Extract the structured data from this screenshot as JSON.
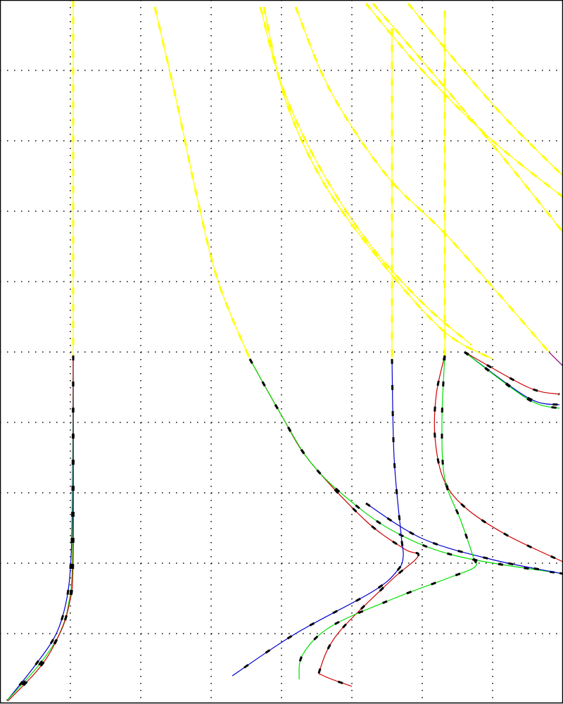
{
  "chart_data": {
    "type": "line",
    "title": "",
    "xlabel": "",
    "ylabel": "",
    "xlim": [
      0,
      8
    ],
    "ylim": [
      0,
      10
    ],
    "grid": true,
    "grid_style": "dotted",
    "legend": "none",
    "colors": {
      "yellow": "#ffff00",
      "red": "#cc0000",
      "green": "#00dd00",
      "blue": "#0000cc",
      "purple": "#800080",
      "dash": "#000000"
    },
    "series": [
      {
        "color": "yellow",
        "dashed": true,
        "points": [
          [
            1.04,
            10
          ],
          [
            1.04,
            4.95
          ]
        ]
      },
      {
        "color": "blue",
        "dashed": true,
        "points": [
          [
            1.04,
            4.95
          ],
          [
            1.03,
            3.0
          ],
          [
            1.01,
            2.1
          ],
          [
            0.95,
            1.5
          ],
          [
            0.8,
            1.0
          ],
          [
            0.5,
            0.55
          ],
          [
            0.1,
            0.05
          ]
        ]
      },
      {
        "color": "green",
        "dashed": true,
        "points": [
          [
            1.04,
            4.95
          ],
          [
            1.03,
            2.1
          ],
          [
            0.97,
            1.4
          ],
          [
            0.85,
            1.0
          ],
          [
            0.55,
            0.55
          ],
          [
            0.1,
            0.05
          ]
        ]
      },
      {
        "color": "red",
        "dashed": true,
        "points": [
          [
            1.04,
            4.95
          ],
          [
            1.04,
            2.1
          ],
          [
            0.98,
            1.4
          ],
          [
            0.8,
            0.9
          ],
          [
            0.55,
            0.5
          ],
          [
            0.12,
            0.05
          ]
        ]
      },
      {
        "color": "yellow",
        "dashed": true,
        "points": [
          [
            2.2,
            9.9
          ],
          [
            2.5,
            8.6
          ],
          [
            2.8,
            7.2
          ],
          [
            3.1,
            6.0
          ],
          [
            3.55,
            4.9
          ]
        ]
      },
      {
        "color": "red",
        "dashed": true,
        "points": [
          [
            3.55,
            4.9
          ],
          [
            4.0,
            4.1
          ],
          [
            4.4,
            3.45
          ],
          [
            5.2,
            2.6
          ],
          [
            5.75,
            2.2
          ],
          [
            5.94,
            2.1
          ],
          [
            5.55,
            1.75
          ],
          [
            4.8,
            1.0
          ],
          [
            4.55,
            0.5
          ],
          [
            4.6,
            0.4
          ],
          [
            5.0,
            0.25
          ]
        ]
      },
      {
        "color": "green",
        "dashed": true,
        "points": [
          [
            3.55,
            4.9
          ],
          [
            4.0,
            4.1
          ],
          [
            4.4,
            3.45
          ],
          [
            4.9,
            2.95
          ],
          [
            5.6,
            2.45
          ],
          [
            6.5,
            2.1
          ],
          [
            8.0,
            1.85
          ]
        ]
      },
      {
        "color": "yellow",
        "dashed": true,
        "points": [
          [
            5.57,
            9.6
          ],
          [
            5.57,
            4.9
          ]
        ]
      },
      {
        "color": "blue",
        "dashed": true,
        "points": [
          [
            5.57,
            4.9
          ],
          [
            5.6,
            3.5
          ],
          [
            5.7,
            2.4
          ],
          [
            5.73,
            2.1
          ],
          [
            5.65,
            1.9
          ],
          [
            5.3,
            1.6
          ],
          [
            4.2,
            1.0
          ],
          [
            3.3,
            0.4
          ]
        ]
      },
      {
        "color": "blue",
        "dashed": true,
        "points": [
          [
            5.2,
            2.85
          ],
          [
            6.0,
            2.35
          ],
          [
            7.0,
            2.05
          ],
          [
            8.0,
            1.85
          ]
        ]
      },
      {
        "color": "yellow",
        "dashed": true,
        "points": [
          [
            6.32,
            9.85
          ],
          [
            6.32,
            4.95
          ]
        ]
      },
      {
        "color": "red",
        "dashed": true,
        "points": [
          [
            6.32,
            4.95
          ],
          [
            6.2,
            4.4
          ],
          [
            6.18,
            3.8
          ],
          [
            6.3,
            3.2
          ],
          [
            6.6,
            2.8
          ],
          [
            7.2,
            2.4
          ],
          [
            8.0,
            2.02
          ]
        ]
      },
      {
        "color": "green",
        "dashed": true,
        "points": [
          [
            6.32,
            4.95
          ],
          [
            6.28,
            4.0
          ],
          [
            6.32,
            3.2
          ],
          [
            6.55,
            2.6
          ],
          [
            6.72,
            2.1
          ],
          [
            6.75,
            1.95
          ],
          [
            6.4,
            1.8
          ],
          [
            5.6,
            1.5
          ],
          [
            4.7,
            1.1
          ],
          [
            4.3,
            0.7
          ],
          [
            4.25,
            0.35
          ]
        ]
      },
      {
        "color": "yellow",
        "dashed": true,
        "points": [
          [
            3.7,
            9.9
          ],
          [
            4.0,
            8.8
          ],
          [
            4.5,
            7.7
          ],
          [
            5.2,
            6.6
          ],
          [
            6.0,
            5.7
          ],
          [
            6.7,
            5.1
          ]
        ]
      },
      {
        "color": "yellow",
        "dashed": true,
        "points": [
          [
            3.75,
            9.9
          ],
          [
            4.05,
            8.6
          ],
          [
            4.6,
            7.4
          ],
          [
            5.4,
            6.3
          ],
          [
            6.3,
            5.3
          ],
          [
            7.0,
            4.9
          ]
        ]
      },
      {
        "color": "yellow",
        "dashed": true,
        "points": [
          [
            4.2,
            9.9
          ],
          [
            4.7,
            8.7
          ],
          [
            5.5,
            7.5
          ],
          [
            6.4,
            6.6
          ],
          [
            7.8,
            5.0
          ]
        ]
      },
      {
        "color": "yellow",
        "dashed": true,
        "points": [
          [
            5.2,
            9.95
          ],
          [
            6.0,
            9.0
          ],
          [
            7.0,
            8.0
          ],
          [
            8.0,
            7.2
          ]
        ]
      },
      {
        "color": "yellow",
        "dashed": true,
        "points": [
          [
            5.3,
            9.95
          ],
          [
            6.2,
            8.9
          ],
          [
            7.2,
            7.7
          ],
          [
            8.0,
            6.7
          ]
        ]
      },
      {
        "color": "yellow",
        "dashed": true,
        "points": [
          [
            5.8,
            9.95
          ],
          [
            6.5,
            9.1
          ],
          [
            7.2,
            8.3
          ],
          [
            8.0,
            7.5
          ]
        ]
      },
      {
        "color": "red",
        "dashed": true,
        "points": [
          [
            6.6,
            5.0
          ],
          [
            7.5,
            4.5
          ],
          [
            7.95,
            4.4
          ]
        ]
      },
      {
        "color": "blue",
        "dashed": true,
        "points": [
          [
            6.6,
            5.0
          ],
          [
            7.5,
            4.35
          ],
          [
            7.95,
            4.25
          ]
        ]
      },
      {
        "color": "green",
        "dashed": true,
        "points": [
          [
            6.6,
            5.0
          ],
          [
            7.5,
            4.33
          ],
          [
            7.95,
            4.2
          ]
        ]
      },
      {
        "color": "purple",
        "dashed": false,
        "points": [
          [
            7.8,
            5.0
          ],
          [
            8.0,
            4.8
          ]
        ]
      }
    ]
  }
}
